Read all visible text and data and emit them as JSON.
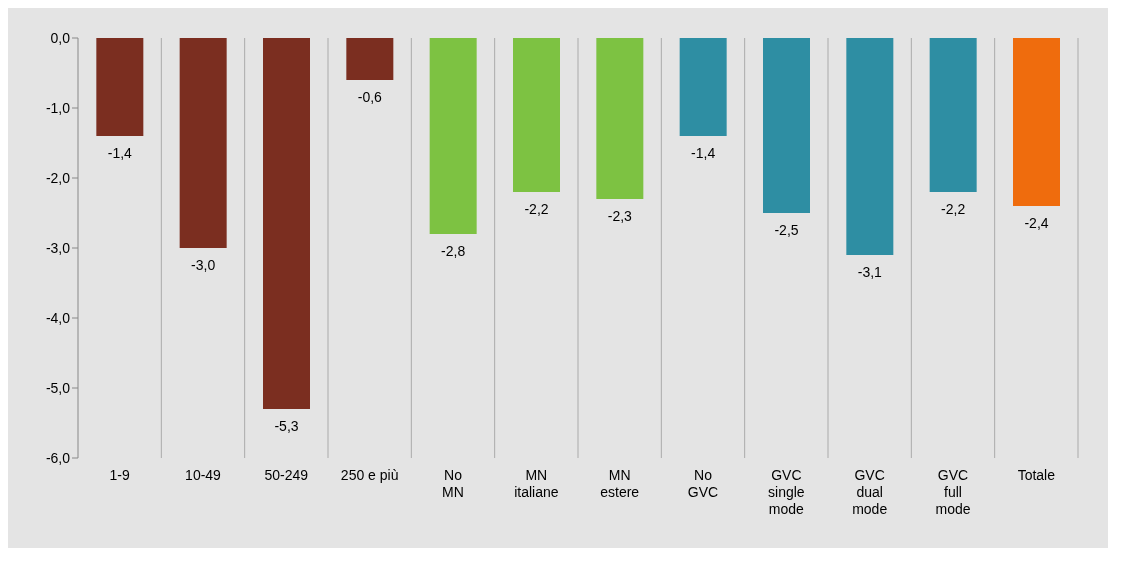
{
  "chart_data": {
    "type": "bar",
    "categories": [
      "1-9",
      "10-49",
      "50-249",
      "250 e più",
      "No MN",
      "MN italiane",
      "MN estere",
      "No GVC",
      "GVC single mode",
      "GVC dual mode",
      "GVC full mode",
      "Totale"
    ],
    "values": [
      -1.4,
      -3.0,
      -5.3,
      -0.6,
      -2.8,
      -2.2,
      -2.3,
      -1.4,
      -2.5,
      -3.1,
      -2.2,
      -2.4
    ],
    "colors": [
      "#7b2e20",
      "#7b2e20",
      "#7b2e20",
      "#7b2e20",
      "#7dc242",
      "#7dc242",
      "#7dc242",
      "#2e8ea3",
      "#2e8ea3",
      "#2e8ea3",
      "#2e8ea3",
      "#ef6c0d"
    ],
    "value_labels": [
      "-1,4",
      "-3,0",
      "-5,3",
      "-0,6",
      "-2,8",
      "-2,2",
      "-2,3",
      "-1,4",
      "-2,5",
      "-3,1",
      "-2,2",
      "-2,4"
    ],
    "ylim": [
      -6,
      0
    ],
    "yticks": [
      {
        "value": -6,
        "label": "-6,0"
      },
      {
        "value": -5,
        "label": "-5,0"
      },
      {
        "value": -4,
        "label": "-4,0"
      },
      {
        "value": -3,
        "label": "-3,0"
      },
      {
        "value": -2,
        "label": "-2,0"
      },
      {
        "value": -1,
        "label": "-1,0"
      },
      {
        "value": 0,
        "label": "0,0"
      }
    ],
    "grid": "x"
  }
}
